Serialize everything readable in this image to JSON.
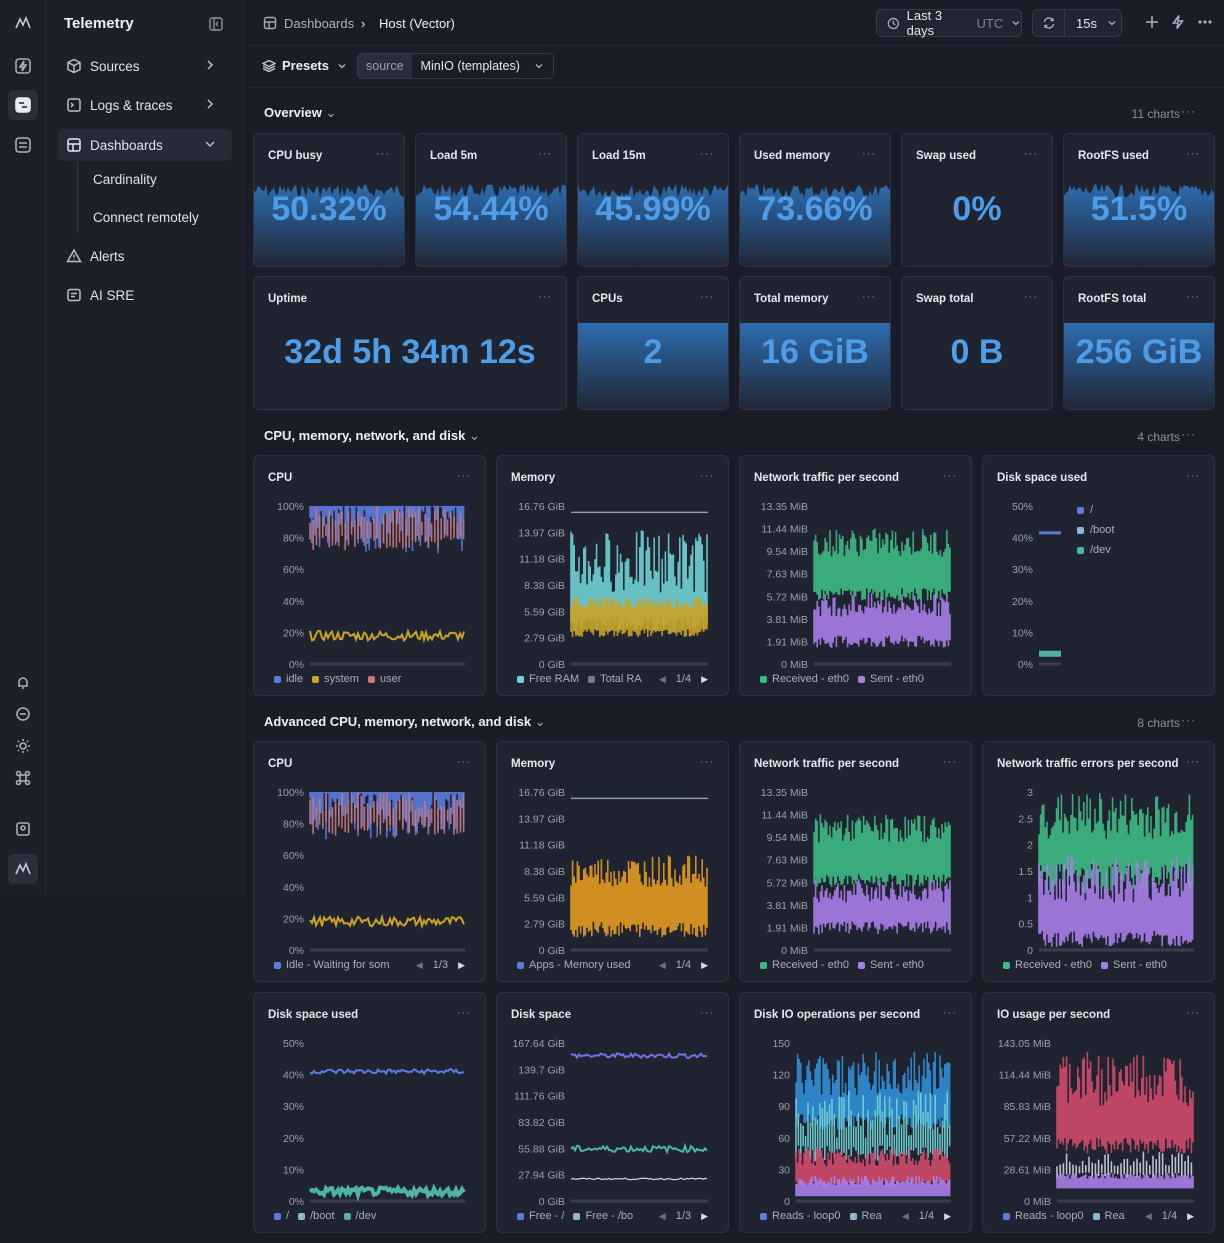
{
  "app": {
    "title": "Telemetry"
  },
  "nav": {
    "items": [
      {
        "label": "Sources",
        "icon": "cube-icon"
      },
      {
        "label": "Logs & traces",
        "icon": "terminal-icon"
      },
      {
        "label": "Dashboards",
        "icon": "layout-icon"
      },
      {
        "label": "Alerts",
        "icon": "warning-icon"
      },
      {
        "label": "AI SRE",
        "icon": "chat-icon"
      }
    ],
    "sub_items": [
      "Cardinality",
      "Connect remotely"
    ]
  },
  "breadcrumb": {
    "root": "Dashboards",
    "current": "Host (Vector)"
  },
  "time": {
    "range": "Last 3 days",
    "tz": "UTC",
    "refresh": "15s"
  },
  "filters": {
    "presets": "Presets",
    "source_label": "source",
    "source_value": "MinIO (templates)"
  },
  "sections": [
    {
      "title": "Overview",
      "count": "11 charts"
    },
    {
      "title": "CPU, memory, network, and disk",
      "count": "4 charts"
    },
    {
      "title": "Advanced CPU, memory, network, and disk",
      "count": "8 charts"
    }
  ],
  "stats": [
    {
      "title": "CPU busy",
      "value": "50.32%",
      "spark": true
    },
    {
      "title": "Load 5m",
      "value": "54.44%",
      "spark": true
    },
    {
      "title": "Load 15m",
      "value": "45.99%",
      "spark": true
    },
    {
      "title": "Used memory",
      "value": "73.66%",
      "spark": true
    },
    {
      "title": "Swap used",
      "value": "0%",
      "spark": false
    },
    {
      "title": "RootFS used",
      "value": "51.5%",
      "spark": true
    },
    {
      "title": "Uptime",
      "value": "32d 5h 34m 12s",
      "spark": false
    },
    {
      "title": "CPUs",
      "value": "2",
      "spark": "flat"
    },
    {
      "title": "Total memory",
      "value": "16 GiB",
      "spark": "flat"
    },
    {
      "title": "Swap total",
      "value": "0 B",
      "spark": false
    },
    {
      "title": "RootFS total",
      "value": "256 GiB",
      "spark": "flat"
    }
  ],
  "chart_data": [
    {
      "type": "bar",
      "title": "CPU",
      "yticks": [
        "100%",
        "80%",
        "60%",
        "40%",
        "20%",
        "0%"
      ],
      "ylim": [
        0,
        100
      ],
      "series": [
        {
          "name": "idle",
          "level": [
            88,
            100
          ],
          "color": "#5b7be0"
        },
        {
          "name": "system",
          "level": [
            16,
            22
          ],
          "color": "#c9a227"
        },
        {
          "name": "user",
          "level": [
            72,
            100
          ],
          "color": "#c97a7a"
        }
      ],
      "legend": [
        "idle",
        "system",
        "user"
      ]
    },
    {
      "type": "bar",
      "title": "Memory",
      "yticks": [
        "16.76 GiB",
        "13.97 GiB",
        "11.18 GiB",
        "8.38 GiB",
        "5.59 GiB",
        "2.79 GiB",
        "0 GiB"
      ],
      "series": [
        {
          "name": "Free RAM",
          "level": [
            3,
            11.5
          ],
          "color": "#6fd1d4"
        },
        {
          "name": "Total RAM",
          "level": [
            16,
            16
          ],
          "color": "#6f7f88"
        }
      ],
      "legend": [
        "Free RAM",
        "Total RA"
      ],
      "pager": "1/4"
    },
    {
      "type": "area",
      "title": "Network traffic per second",
      "yticks": [
        "13.35 MiB",
        "11.44 MiB",
        "9.54 MiB",
        "7.63 MiB",
        "5.72 MiB",
        "3.81 MiB",
        "1.91 MiB",
        "0 MiB"
      ],
      "series": [
        {
          "name": "Received - eth0",
          "level": [
            6.5,
            11.5
          ],
          "color": "#3dba84"
        },
        {
          "name": "Sent - eth0",
          "level": [
            1.5,
            6.5
          ],
          "color": "#a77ee8"
        }
      ],
      "legend": [
        "Received - eth0",
        "Sent - eth0"
      ]
    },
    {
      "type": "line",
      "title": "Disk space used",
      "yticks": [
        "50%",
        "40%",
        "30%",
        "20%",
        "10%",
        "0%"
      ],
      "series": [
        {
          "name": "/",
          "level": [
            41,
            41
          ],
          "color": "#5b7be0"
        },
        {
          "name": "/boot",
          "level": [
            0,
            0
          ],
          "color": "#8ab8d0"
        },
        {
          "name": "/dev",
          "level": [
            3,
            3
          ],
          "color": "#4fb5a0"
        }
      ],
      "legend": [
        "/",
        "/boot",
        "/dev"
      ]
    },
    {
      "type": "bar",
      "title": "CPU",
      "yticks": [
        "100%",
        "80%",
        "60%",
        "40%",
        "20%",
        "0%"
      ],
      "legend": [
        "Idle - Waiting for som"
      ],
      "pager": "1/3"
    },
    {
      "type": "bar",
      "title": "Memory",
      "yticks": [
        "16.76 GiB",
        "13.97 GiB",
        "11.18 GiB",
        "8.38 GiB",
        "5.59 GiB",
        "2.79 GiB",
        "0 GiB"
      ],
      "legend": [
        "Apps - Memory used"
      ],
      "pager": "1/4"
    },
    {
      "type": "area",
      "title": "Network traffic per second",
      "yticks": [
        "13.35 MiB",
        "11.44 MiB",
        "9.54 MiB",
        "7.63 MiB",
        "5.72 MiB",
        "3.81 MiB",
        "1.91 MiB",
        "0 MiB"
      ],
      "legend": [
        "Received - eth0",
        "Sent - eth0"
      ]
    },
    {
      "type": "area",
      "title": "Network traffic errors per second",
      "yticks": [
        "3",
        "2.5",
        "2",
        "1.5",
        "1",
        "0.5",
        "0"
      ],
      "legend": [
        "Received - eth0",
        "Sent - eth0"
      ]
    },
    {
      "type": "line",
      "title": "Disk space used",
      "yticks": [
        "50%",
        "40%",
        "30%",
        "20%",
        "10%",
        "0%"
      ],
      "legend": [
        "/",
        "/boot",
        "/dev"
      ]
    },
    {
      "type": "line",
      "title": "Disk space",
      "yticks": [
        "167.64 GiB",
        "139.7 GiB",
        "111.76 GiB",
        "83.82 GiB",
        "55.88 GiB",
        "27.94 GiB",
        "0 GiB"
      ],
      "legend": [
        "Free - /",
        "Free - /bo"
      ],
      "pager": "1/3"
    },
    {
      "type": "area",
      "title": "Disk IO operations per second",
      "yticks": [
        "150",
        "120",
        "90",
        "60",
        "30",
        "0"
      ],
      "legend": [
        "Reads - loop0",
        "Rea"
      ],
      "pager": "1/4"
    },
    {
      "type": "area",
      "title": "IO usage per second",
      "yticks": [
        "143.05 MiB",
        "114.44 MiB",
        "85.83 MiB",
        "57.22 MiB",
        "28.61 MiB",
        "0 MiB"
      ],
      "legend": [
        "Reads - loop0",
        "Rea"
      ],
      "pager": "1/4"
    }
  ],
  "colors": {
    "accent": "#4d9de8",
    "bg": "#1a1d27",
    "card": "#202431"
  }
}
